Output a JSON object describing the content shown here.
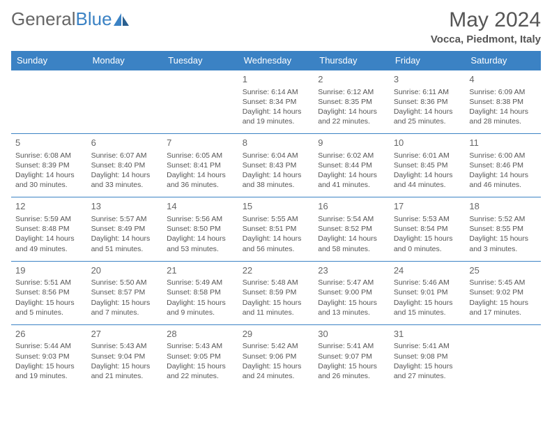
{
  "logo": {
    "text_general": "General",
    "text_blue": "Blue"
  },
  "header": {
    "month_title": "May 2024",
    "location": "Vocca, Piedmont, Italy"
  },
  "colors": {
    "header_bg": "#3b82c4",
    "border": "#3b82c4",
    "text": "#555555",
    "bg": "#ffffff"
  },
  "day_headers": [
    "Sunday",
    "Monday",
    "Tuesday",
    "Wednesday",
    "Thursday",
    "Friday",
    "Saturday"
  ],
  "weeks": [
    [
      null,
      null,
      null,
      {
        "n": "1",
        "sr": "6:14 AM",
        "ss": "8:34 PM",
        "dh": "14",
        "dm": "19"
      },
      {
        "n": "2",
        "sr": "6:12 AM",
        "ss": "8:35 PM",
        "dh": "14",
        "dm": "22"
      },
      {
        "n": "3",
        "sr": "6:11 AM",
        "ss": "8:36 PM",
        "dh": "14",
        "dm": "25"
      },
      {
        "n": "4",
        "sr": "6:09 AM",
        "ss": "8:38 PM",
        "dh": "14",
        "dm": "28"
      }
    ],
    [
      {
        "n": "5",
        "sr": "6:08 AM",
        "ss": "8:39 PM",
        "dh": "14",
        "dm": "30"
      },
      {
        "n": "6",
        "sr": "6:07 AM",
        "ss": "8:40 PM",
        "dh": "14",
        "dm": "33"
      },
      {
        "n": "7",
        "sr": "6:05 AM",
        "ss": "8:41 PM",
        "dh": "14",
        "dm": "36"
      },
      {
        "n": "8",
        "sr": "6:04 AM",
        "ss": "8:43 PM",
        "dh": "14",
        "dm": "38"
      },
      {
        "n": "9",
        "sr": "6:02 AM",
        "ss": "8:44 PM",
        "dh": "14",
        "dm": "41"
      },
      {
        "n": "10",
        "sr": "6:01 AM",
        "ss": "8:45 PM",
        "dh": "14",
        "dm": "44"
      },
      {
        "n": "11",
        "sr": "6:00 AM",
        "ss": "8:46 PM",
        "dh": "14",
        "dm": "46"
      }
    ],
    [
      {
        "n": "12",
        "sr": "5:59 AM",
        "ss": "8:48 PM",
        "dh": "14",
        "dm": "49"
      },
      {
        "n": "13",
        "sr": "5:57 AM",
        "ss": "8:49 PM",
        "dh": "14",
        "dm": "51"
      },
      {
        "n": "14",
        "sr": "5:56 AM",
        "ss": "8:50 PM",
        "dh": "14",
        "dm": "53"
      },
      {
        "n": "15",
        "sr": "5:55 AM",
        "ss": "8:51 PM",
        "dh": "14",
        "dm": "56"
      },
      {
        "n": "16",
        "sr": "5:54 AM",
        "ss": "8:52 PM",
        "dh": "14",
        "dm": "58"
      },
      {
        "n": "17",
        "sr": "5:53 AM",
        "ss": "8:54 PM",
        "dh": "15",
        "dm": "0"
      },
      {
        "n": "18",
        "sr": "5:52 AM",
        "ss": "8:55 PM",
        "dh": "15",
        "dm": "3"
      }
    ],
    [
      {
        "n": "19",
        "sr": "5:51 AM",
        "ss": "8:56 PM",
        "dh": "15",
        "dm": "5"
      },
      {
        "n": "20",
        "sr": "5:50 AM",
        "ss": "8:57 PM",
        "dh": "15",
        "dm": "7"
      },
      {
        "n": "21",
        "sr": "5:49 AM",
        "ss": "8:58 PM",
        "dh": "15",
        "dm": "9"
      },
      {
        "n": "22",
        "sr": "5:48 AM",
        "ss": "8:59 PM",
        "dh": "15",
        "dm": "11"
      },
      {
        "n": "23",
        "sr": "5:47 AM",
        "ss": "9:00 PM",
        "dh": "15",
        "dm": "13"
      },
      {
        "n": "24",
        "sr": "5:46 AM",
        "ss": "9:01 PM",
        "dh": "15",
        "dm": "15"
      },
      {
        "n": "25",
        "sr": "5:45 AM",
        "ss": "9:02 PM",
        "dh": "15",
        "dm": "17"
      }
    ],
    [
      {
        "n": "26",
        "sr": "5:44 AM",
        "ss": "9:03 PM",
        "dh": "15",
        "dm": "19"
      },
      {
        "n": "27",
        "sr": "5:43 AM",
        "ss": "9:04 PM",
        "dh": "15",
        "dm": "21"
      },
      {
        "n": "28",
        "sr": "5:43 AM",
        "ss": "9:05 PM",
        "dh": "15",
        "dm": "22"
      },
      {
        "n": "29",
        "sr": "5:42 AM",
        "ss": "9:06 PM",
        "dh": "15",
        "dm": "24"
      },
      {
        "n": "30",
        "sr": "5:41 AM",
        "ss": "9:07 PM",
        "dh": "15",
        "dm": "26"
      },
      {
        "n": "31",
        "sr": "5:41 AM",
        "ss": "9:08 PM",
        "dh": "15",
        "dm": "27"
      },
      null
    ]
  ],
  "labels": {
    "sunrise": "Sunrise:",
    "sunset": "Sunset:",
    "daylight": "Daylight:",
    "hours": "hours",
    "and": "and",
    "minutes": "minutes."
  }
}
